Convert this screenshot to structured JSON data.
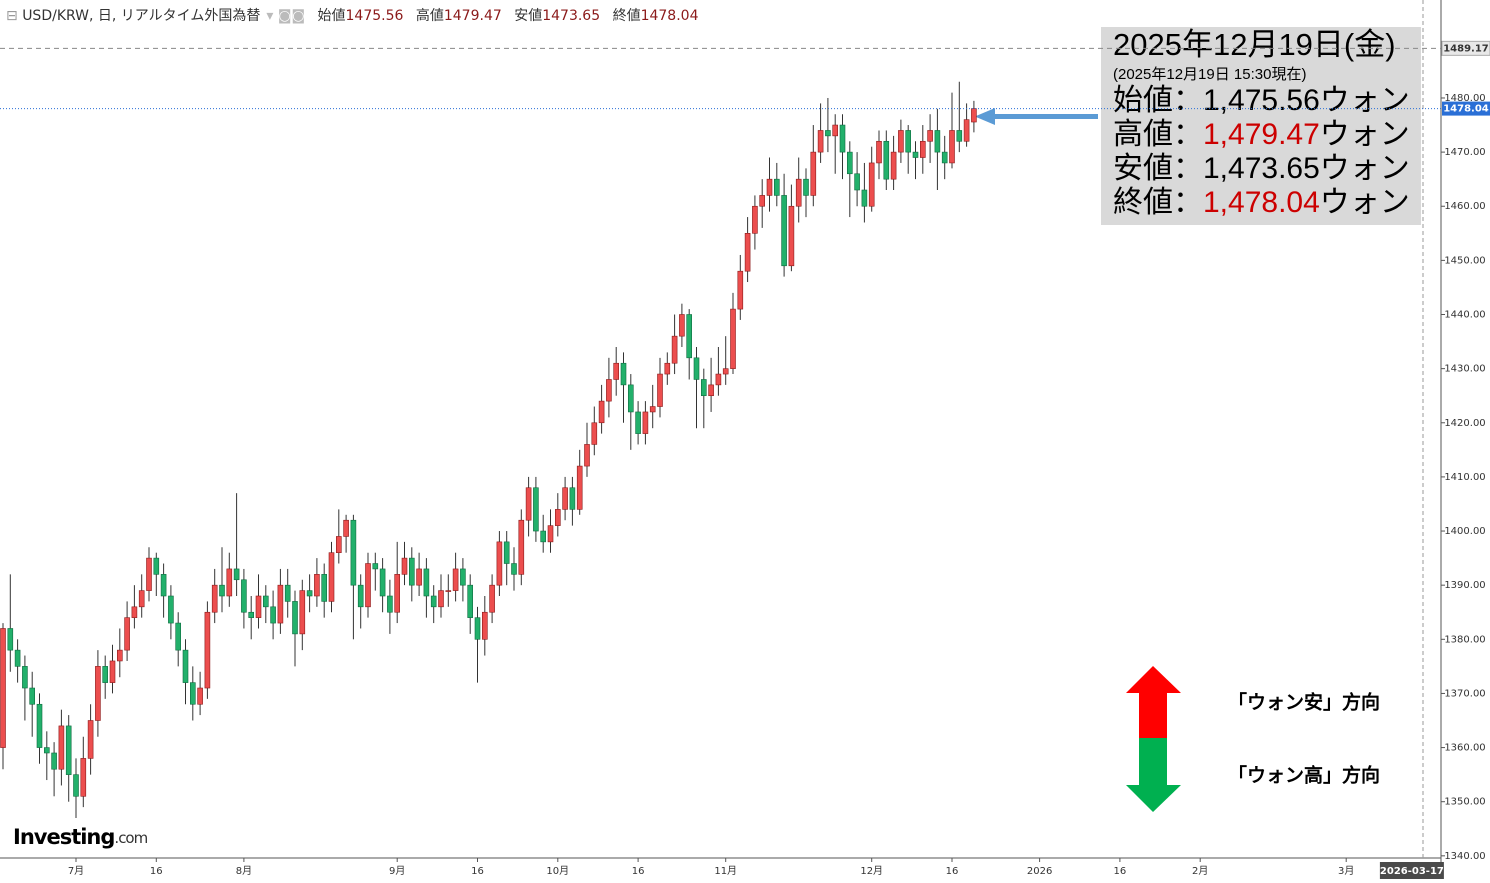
{
  "chart_data": {
    "type": "candlestick",
    "title": "USD/KRW, 日, リアルタイム外国為替",
    "header_labels": [
      "始値",
      "高値",
      "安値",
      "終値"
    ],
    "ohlc": {
      "up_color": "#ec4e4e",
      "down_color": "#22b06b",
      "open": [
        1360,
        1382,
        1378,
        1375,
        1371,
        1368,
        1360,
        1359,
        1356,
        1364,
        1355,
        1351,
        1358,
        1365,
        1375,
        1372,
        1376,
        1378,
        1384,
        1386,
        1389,
        1395,
        1392,
        1388,
        1383,
        1378,
        1372,
        1368,
        1371,
        1385,
        1390,
        1388,
        1393,
        1391,
        1385,
        1384,
        1388,
        1386,
        1383,
        1390,
        1387,
        1381,
        1389,
        1388,
        1392,
        1387,
        1396,
        1399,
        1402,
        1390,
        1386,
        1394,
        1393,
        1388,
        1385,
        1392,
        1395,
        1390,
        1393,
        1388,
        1386,
        1389,
        1389,
        1393,
        1390,
        1384,
        1380,
        1385,
        1390,
        1398,
        1394,
        1392,
        1402,
        1408,
        1400,
        1398,
        1401,
        1404,
        1408,
        1404,
        1412,
        1416,
        1420,
        1424,
        1428,
        1431,
        1427,
        1422,
        1418,
        1422,
        1423,
        1429,
        1431,
        1436,
        1440,
        1432,
        1428,
        1425,
        1427,
        1429,
        1430,
        1441,
        1448,
        1455,
        1460,
        1462,
        1465,
        1462,
        1449,
        1460,
        1465,
        1462,
        1470,
        1474,
        1473,
        1475,
        1470,
        1466,
        1463,
        1460,
        1468,
        1472,
        1465,
        1470,
        1474,
        1470,
        1469,
        1472,
        1474,
        1470,
        1468,
        1474,
        1472,
        1475.56
      ],
      "high": [
        1383,
        1392,
        1380,
        1377,
        1374,
        1370,
        1363,
        1361,
        1367,
        1366,
        1358,
        1362,
        1368,
        1378,
        1377,
        1379,
        1382,
        1387,
        1390,
        1392,
        1397,
        1396,
        1394,
        1390,
        1385,
        1380,
        1375,
        1374,
        1387,
        1393,
        1397,
        1396,
        1407,
        1393,
        1388,
        1392,
        1390,
        1389,
        1393,
        1393,
        1389,
        1391,
        1392,
        1395,
        1394,
        1398,
        1404,
        1403,
        1403,
        1392,
        1396,
        1396,
        1395,
        1391,
        1398,
        1398,
        1397,
        1396,
        1395,
        1390,
        1392,
        1392,
        1396,
        1395,
        1392,
        1386,
        1388,
        1392,
        1400,
        1400,
        1397,
        1404,
        1410,
        1410,
        1403,
        1404,
        1407,
        1410,
        1410,
        1415,
        1420,
        1423,
        1427,
        1432,
        1434,
        1433,
        1429,
        1424,
        1424,
        1427,
        1432,
        1433,
        1440,
        1442,
        1441,
        1434,
        1430,
        1432,
        1434,
        1436,
        1444,
        1451,
        1458,
        1462,
        1465,
        1469,
        1468,
        1466,
        1464,
        1469,
        1467,
        1475,
        1479,
        1480,
        1477,
        1477,
        1472,
        1470,
        1468,
        1471,
        1474,
        1474,
        1473,
        1476,
        1475,
        1472,
        1475,
        1477,
        1478,
        1473,
        1481,
        1483,
        1479,
        1479.47
      ],
      "low": [
        1356,
        1374,
        1372,
        1365,
        1362,
        1357,
        1354,
        1351,
        1353,
        1350,
        1347,
        1349,
        1355,
        1362,
        1369,
        1370,
        1373,
        1376,
        1382,
        1384,
        1387,
        1388,
        1384,
        1380,
        1375,
        1368,
        1365,
        1366,
        1369,
        1383,
        1385,
        1386,
        1388,
        1382,
        1380,
        1382,
        1383,
        1380,
        1381,
        1384,
        1375,
        1378,
        1385,
        1386,
        1384,
        1385,
        1394,
        1396,
        1380,
        1382,
        1384,
        1389,
        1385,
        1381,
        1383,
        1390,
        1387,
        1388,
        1384,
        1383,
        1384,
        1386,
        1387,
        1387,
        1381,
        1372,
        1377,
        1383,
        1388,
        1390,
        1389,
        1390,
        1399,
        1398,
        1396,
        1396,
        1399,
        1402,
        1401,
        1403,
        1410,
        1414,
        1418,
        1421,
        1425,
        1420,
        1415,
        1416,
        1416,
        1419,
        1421,
        1427,
        1429,
        1434,
        1428,
        1419,
        1419,
        1422,
        1425,
        1427,
        1429,
        1439,
        1446,
        1452,
        1456,
        1459,
        1460,
        1447,
        1448,
        1457,
        1458,
        1460,
        1468,
        1470,
        1466,
        1465,
        1458,
        1460,
        1457,
        1459,
        1465,
        1463,
        1463,
        1468,
        1466,
        1465,
        1466,
        1468,
        1463,
        1465,
        1467,
        1470,
        1471,
        1473.65
      ],
      "close": [
        1382,
        1378,
        1375,
        1371,
        1368,
        1360,
        1359,
        1356,
        1364,
        1355,
        1351,
        1358,
        1365,
        1375,
        1372,
        1376,
        1378,
        1384,
        1386,
        1389,
        1395,
        1392,
        1388,
        1383,
        1378,
        1372,
        1368,
        1371,
        1385,
        1390,
        1388,
        1393,
        1391,
        1385,
        1384,
        1388,
        1386,
        1383,
        1390,
        1387,
        1381,
        1389,
        1388,
        1392,
        1387,
        1396,
        1399,
        1402,
        1390,
        1386,
        1394,
        1393,
        1388,
        1385,
        1392,
        1395,
        1390,
        1393,
        1388,
        1386,
        1389,
        1389,
        1393,
        1390,
        1384,
        1380,
        1385,
        1390,
        1398,
        1394,
        1392,
        1402,
        1408,
        1400,
        1398,
        1401,
        1404,
        1408,
        1404,
        1412,
        1416,
        1420,
        1424,
        1428,
        1431,
        1427,
        1422,
        1418,
        1422,
        1423,
        1429,
        1431,
        1436,
        1440,
        1432,
        1428,
        1425,
        1427,
        1429,
        1430,
        1441,
        1448,
        1455,
        1460,
        1462,
        1465,
        1462,
        1449,
        1460,
        1465,
        1462,
        1470,
        1474,
        1473,
        1475,
        1470,
        1466,
        1463,
        1460,
        1468,
        1472,
        1465,
        1470,
        1474,
        1470,
        1469,
        1472,
        1474,
        1470,
        1468,
        1474,
        1472,
        1476,
        1478.04
      ]
    },
    "ylim": [
      1339.6,
      1498.1
    ],
    "yticks": [
      {
        "value": 1340,
        "label": "1340.00"
      },
      {
        "value": 1350,
        "label": "1350.00"
      },
      {
        "value": 1360,
        "label": "1360.00"
      },
      {
        "value": 1370,
        "label": "1370.00"
      },
      {
        "value": 1380,
        "label": "1380.00"
      },
      {
        "value": 1390,
        "label": "1390.00"
      },
      {
        "value": 1400,
        "label": "1400.00"
      },
      {
        "value": 1410,
        "label": "1410.00"
      },
      {
        "value": 1420,
        "label": "1420.00"
      },
      {
        "value": 1430,
        "label": "1430.00"
      },
      {
        "value": 1440,
        "label": "1440.00"
      },
      {
        "value": 1450,
        "label": "1450.00"
      },
      {
        "value": 1460,
        "label": "1460.00"
      },
      {
        "value": 1470,
        "label": "1470.00"
      },
      {
        "value": 1480,
        "label": "1480.00"
      }
    ],
    "high_line": 1489.17,
    "xticks": [
      {
        "value": 10,
        "label": "7月"
      },
      {
        "value": 21,
        "label": "16"
      },
      {
        "value": 33,
        "label": "8月"
      },
      {
        "value": 54,
        "label": "9月"
      },
      {
        "value": 65,
        "label": "16"
      },
      {
        "value": 76,
        "label": "10月"
      },
      {
        "value": 87,
        "label": "16"
      },
      {
        "value": 99,
        "label": "11月"
      },
      {
        "value": 119,
        "label": "12月"
      },
      {
        "value": 130,
        "label": "16"
      },
      {
        "value": 142,
        "label": "2026"
      },
      {
        "value": 153,
        "label": "16"
      },
      {
        "value": 164,
        "label": "2月"
      },
      {
        "value": 184,
        "label": "3月"
      }
    ],
    "cursor_date": {
      "value": 193,
      "label": "2026-03-17"
    },
    "info_box": {
      "date": "2025年12月19日(金)",
      "note": "(2025年12月19日 15:30現在)",
      "rows": [
        {
          "label": "始値：",
          "value": "1,475.56",
          "unit": "ウォン",
          "color": "#000000"
        },
        {
          "label": "高値：",
          "value": "1,479.47",
          "unit": "ウォン",
          "color": "#cc0000"
        },
        {
          "label": "安値：",
          "value": "1,473.65",
          "unit": "ウォン",
          "color": "#000000"
        },
        {
          "label": "終値：",
          "value": "1,478.04",
          "unit": "ウォン",
          "color": "#cc0000"
        }
      ]
    },
    "direction_legend": [
      "「ウォン安」方向",
      "「ウォン高」方向"
    ],
    "logo": {
      "brand": "Investing",
      "suffix": ".com"
    }
  }
}
